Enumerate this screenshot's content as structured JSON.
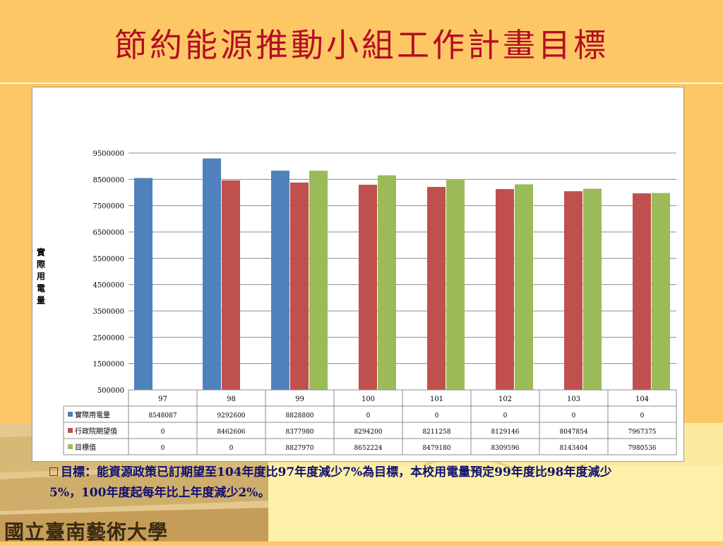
{
  "slide": {
    "title": "節約能源推動小組工作計畫目標",
    "bullet_text": "目標：能資源政策已訂期望至104年度比97年度減少7%為目標，本校用電量預定99年度比98年度減少5%，100年度起每年比上年度減少2%。",
    "logo_text": "國立臺南藝術大學"
  },
  "colors": {
    "background": "#fdc766",
    "title": "#b30f22",
    "bullet_text": "#101070"
  },
  "chart_data": {
    "type": "bar",
    "title": "",
    "xlabel": "",
    "ylabel": "實際用電量",
    "ylim": [
      500000,
      9500000
    ],
    "yticks": [
      9500000,
      8500000,
      7500000,
      6500000,
      5500000,
      4500000,
      3500000,
      2500000,
      1500000,
      500000
    ],
    "grid": true,
    "legend": "data-table-left",
    "categories": [
      "97",
      "98",
      "99",
      "100",
      "101",
      "102",
      "103",
      "104"
    ],
    "series": [
      {
        "name": "實際用電量",
        "color": "#4f81bd",
        "values": [
          8548087,
          9292600,
          8828800,
          0,
          0,
          0,
          0,
          0
        ],
        "labels": [
          "8548087",
          "9292600",
          "8828800",
          "0",
          "0",
          "0",
          "0",
          "0"
        ]
      },
      {
        "name": "行政院期望值",
        "color": "#c0504d",
        "values": [
          0,
          8462606,
          8377980,
          8294200,
          8211258,
          8129146,
          8047854,
          7967375
        ],
        "labels": [
          "0",
          "8462606",
          "8377980",
          "8294200",
          "8211258",
          "8129146",
          "8047854",
          "7967375"
        ]
      },
      {
        "name": "目標值",
        "color": "#9bbb59",
        "values": [
          0,
          0,
          8827970,
          8652224,
          8479180,
          8309596,
          8143404,
          7980536
        ],
        "labels": [
          "0",
          "0",
          "8827970",
          "8652224",
          "8479180",
          "8309596",
          "8143404",
          "7980536"
        ]
      }
    ]
  }
}
